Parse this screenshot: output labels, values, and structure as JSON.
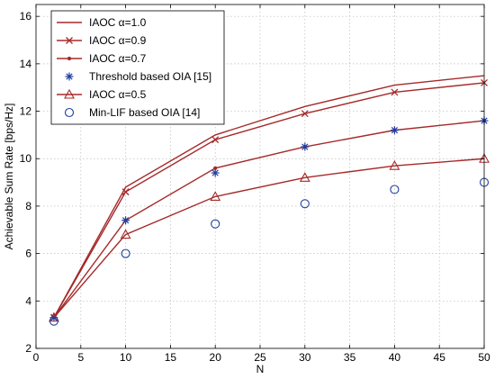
{
  "chart_data": {
    "type": "line",
    "xlabel": "N",
    "ylabel": "Achievable Sum Rate [bps/Hz]",
    "xlim": [
      0,
      50
    ],
    "ylim": [
      2,
      16.5
    ],
    "xticks": [
      0,
      5,
      10,
      15,
      20,
      25,
      30,
      35,
      40,
      45,
      50
    ],
    "yticks": [
      2,
      4,
      6,
      8,
      10,
      12,
      14,
      16
    ],
    "grid": true,
    "legend_position": "top-left",
    "x": [
      2,
      10,
      20,
      30,
      40,
      50
    ],
    "series": [
      {
        "name": "IAOC α=1.0",
        "values": [
          3.3,
          8.8,
          11.0,
          12.2,
          13.1,
          13.5
        ],
        "color": "#a52a2a",
        "marker": "none",
        "line": true
      },
      {
        "name": "IAOC α=0.9",
        "values": [
          3.3,
          8.6,
          10.8,
          11.9,
          12.8,
          13.2
        ],
        "color": "#a52a2a",
        "marker": "x",
        "line": true
      },
      {
        "name": "IAOC α=0.7",
        "values": [
          3.3,
          7.4,
          9.6,
          10.5,
          11.2,
          11.6
        ],
        "color": "#a52a2a",
        "marker": "dot",
        "line": true
      },
      {
        "name": "Threshold based OIA [15]",
        "values": [
          3.3,
          7.4,
          9.4,
          10.5,
          11.2,
          11.6
        ],
        "color": "#1f3f9f",
        "marker": "star",
        "line": false
      },
      {
        "name": "IAOC α=0.5",
        "values": [
          3.3,
          6.8,
          8.4,
          9.2,
          9.7,
          10.0
        ],
        "color": "#a52a2a",
        "marker": "triangle",
        "line": true
      },
      {
        "name": "Min-LIF based OIA [14]",
        "values": [
          3.15,
          6.0,
          7.25,
          8.1,
          8.7,
          9.0
        ],
        "color": "#1f3f9f",
        "marker": "circle",
        "line": false
      }
    ]
  }
}
